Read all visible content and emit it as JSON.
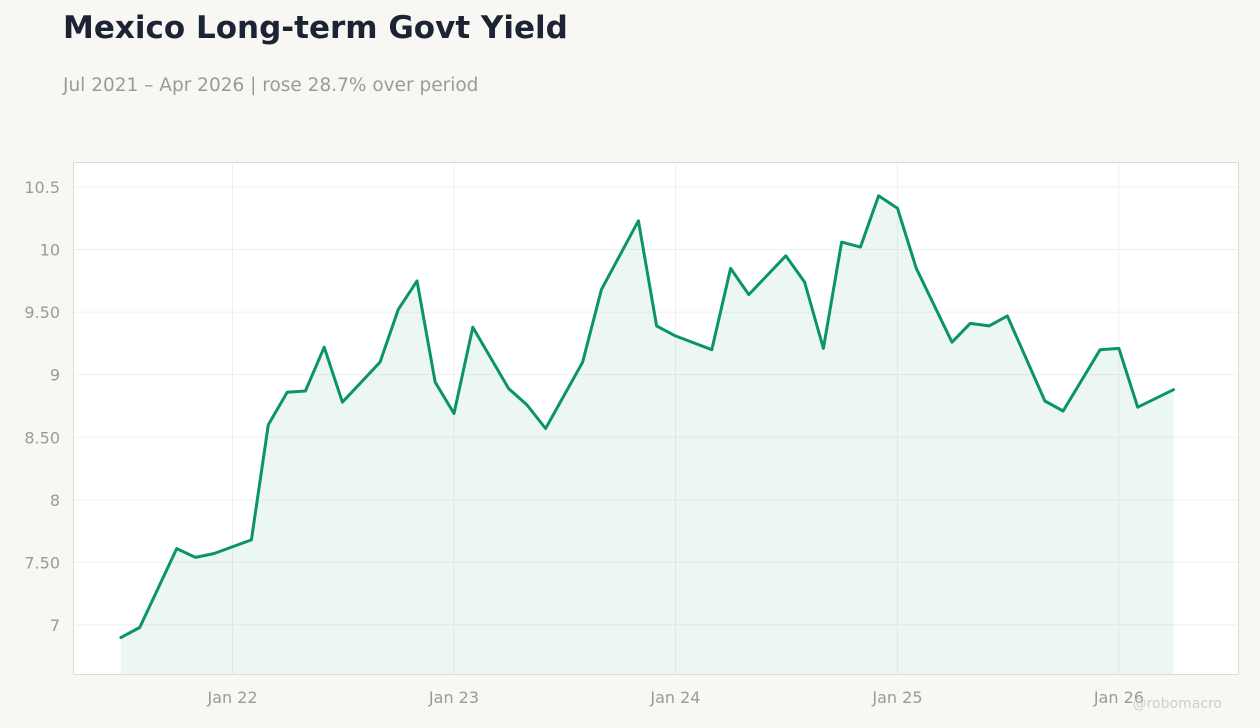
{
  "title": "Mexico Long-term Govt Yield",
  "subtitle": "Jul 2021 – Apr 2026 | rose 28.7% over period",
  "watermark": "@robomacro",
  "colors": {
    "line": "#0a9468",
    "fill": "#0a9468",
    "grid": "#ededea",
    "axis_text": "#9a9a96",
    "background": "#f8f7f4",
    "plot_background": "#ffffff"
  },
  "chart_data": {
    "type": "area",
    "title": "Mexico Long-term Govt Yield",
    "subtitle": "Jul 2021 – Apr 2026 | rose 28.7% over period",
    "xlabel": "",
    "ylabel": "",
    "ylim": [
      6.6,
      10.7
    ],
    "xlim": [
      "2021-04-13",
      "2026-07-18"
    ],
    "grid": true,
    "y_ticks": [
      7,
      7.5,
      8,
      8.5,
      9,
      9.5,
      10,
      10.5
    ],
    "y_tick_labels": [
      "7",
      "7.50",
      "8",
      "8.50",
      "9",
      "9.50",
      "10",
      "10.5"
    ],
    "x_ticks": [
      "2022-01-01",
      "2023-01-01",
      "2024-01-01",
      "2025-01-01",
      "2026-01-01"
    ],
    "x_tick_labels": [
      "Jan 22",
      "Jan 23",
      "Jan 24",
      "Jan 25",
      "Jan 26"
    ],
    "series": [
      {
        "x": [
          "2021-07-01",
          "2021-08-01",
          "2021-10-01",
          "2021-11-01",
          "2021-12-01",
          "2022-02-01",
          "2022-03-01",
          "2022-04-01",
          "2022-05-01",
          "2022-06-01",
          "2022-07-01",
          "2022-09-01",
          "2022-10-01",
          "2022-11-01",
          "2022-12-01",
          "2023-01-01",
          "2023-02-01",
          "2023-04-01",
          "2023-05-01",
          "2023-06-01",
          "2023-08-01",
          "2023-09-01",
          "2023-11-01",
          "2023-12-01",
          "2024-01-01",
          "2024-03-01",
          "2024-04-01",
          "2024-05-01",
          "2024-07-01",
          "2024-08-01",
          "2024-09-01",
          "2024-10-01",
          "2024-11-01",
          "2024-12-01",
          "2025-01-01",
          "2025-02-01",
          "2025-04-01",
          "2025-05-01",
          "2025-06-01",
          "2025-07-01",
          "2025-09-01",
          "2025-10-01",
          "2025-12-01",
          "2026-01-01",
          "2026-02-01",
          "2026-04-01"
        ],
        "values": [
          6.9,
          6.98,
          7.61,
          7.54,
          7.57,
          7.68,
          8.6,
          8.86,
          8.87,
          9.22,
          8.78,
          9.1,
          9.52,
          9.75,
          8.94,
          8.69,
          9.38,
          8.89,
          8.76,
          8.57,
          9.1,
          9.68,
          10.23,
          9.39,
          9.31,
          9.2,
          9.85,
          9.64,
          9.95,
          9.74,
          9.21,
          10.06,
          10.02,
          10.43,
          10.33,
          9.85,
          9.26,
          9.41,
          9.39,
          9.47,
          8.79,
          8.71,
          9.2,
          9.21,
          8.74,
          8.88
        ]
      }
    ]
  }
}
